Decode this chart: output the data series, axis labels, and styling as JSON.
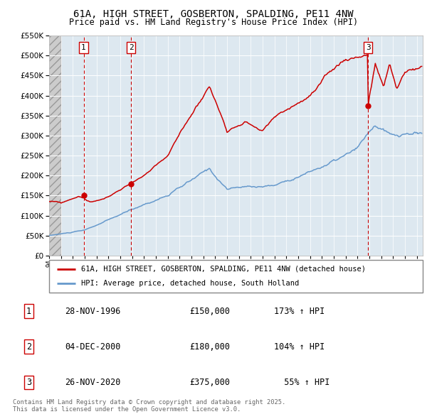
{
  "title1": "61A, HIGH STREET, GOSBERTON, SPALDING, PE11 4NW",
  "title2": "Price paid vs. HM Land Registry's House Price Index (HPI)",
  "ylim": [
    0,
    550000
  ],
  "yticks": [
    0,
    50000,
    100000,
    150000,
    200000,
    250000,
    300000,
    350000,
    400000,
    450000,
    500000,
    550000
  ],
  "xlim_start": 1994.0,
  "xlim_end": 2025.5,
  "sale_dates": [
    1996.91,
    2000.92,
    2020.9
  ],
  "sale_prices": [
    150000,
    180000,
    375000
  ],
  "sale_labels": [
    "1",
    "2",
    "3"
  ],
  "legend_property": "61A, HIGH STREET, GOSBERTON, SPALDING, PE11 4NW (detached house)",
  "legend_hpi": "HPI: Average price, detached house, South Holland",
  "table_entries": [
    {
      "label": "1",
      "date": "28-NOV-1996",
      "price": "£150,000",
      "change": "173% ↑ HPI"
    },
    {
      "label": "2",
      "date": "04-DEC-2000",
      "price": "£180,000",
      "change": "104% ↑ HPI"
    },
    {
      "label": "3",
      "date": "26-NOV-2020",
      "price": "£375,000",
      "change": "  55% ↑ HPI"
    }
  ],
  "footer": "Contains HM Land Registry data © Crown copyright and database right 2025.\nThis data is licensed under the Open Government Licence v3.0.",
  "property_color": "#cc0000",
  "hpi_color": "#6699cc",
  "background_chart": "#dde8f0",
  "grid_color": "#ffffff",
  "dashed_line_color": "#cc0000"
}
